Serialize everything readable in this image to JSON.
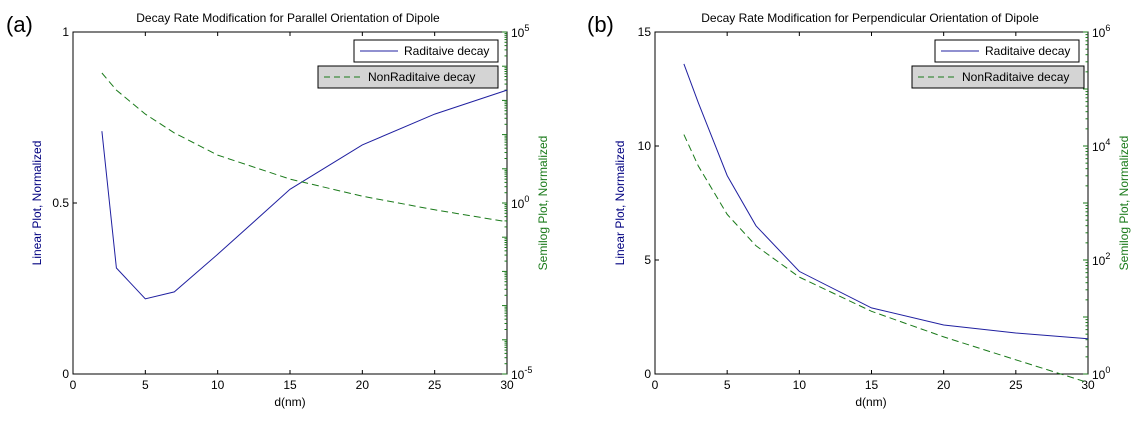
{
  "colors": {
    "radiative": "#2020a0",
    "nonradiative": "#1a7a1a",
    "axis": "#000000",
    "legend_highlight_bg": "#d4d4d4"
  },
  "chart_data": [
    {
      "panel_label": "(a)",
      "type": "line",
      "title": "Decay Rate Modification for Parallel Orientation of Dipole",
      "xlabel": "d(nm)",
      "ylabel": "Linear Plot, Normalized",
      "y2label": "Semilog Plot, Normalized",
      "xlim": [
        0,
        30
      ],
      "ylim": [
        0,
        1
      ],
      "y2_log_exp_range": [
        -5,
        5
      ],
      "xticks": [
        0,
        5,
        10,
        15,
        20,
        25,
        30
      ],
      "yticks": [
        0,
        0.5,
        1
      ],
      "ytick_labels": [
        "0",
        "0.5",
        "1"
      ],
      "y2ticks": [
        {
          "base": "10",
          "exp": "-5",
          "value_exp": -5
        },
        {
          "base": "10",
          "exp": "0",
          "value_exp": 0
        },
        {
          "base": "10",
          "exp": "5",
          "value_exp": 5
        }
      ],
      "series": [
        {
          "name": "Raditaive decay",
          "axis": "left",
          "style": "solid",
          "x": [
            2,
            3,
            5,
            7,
            10,
            15,
            20,
            25,
            30
          ],
          "y": [
            0.71,
            0.31,
            0.22,
            0.24,
            0.35,
            0.54,
            0.67,
            0.76,
            0.83
          ]
        },
        {
          "name": "NonRaditaive decay",
          "axis": "right",
          "style": "dashed",
          "x": [
            2,
            3,
            5,
            7,
            10,
            15,
            20,
            25,
            30
          ],
          "y_log10": [
            3.8,
            3.3,
            2.6,
            2.05,
            1.4,
            0.7,
            0.2,
            -0.2,
            -0.55
          ]
        }
      ],
      "legend": [
        "Raditaive decay",
        "NonRaditaive decay"
      ],
      "legend_position": "top-right"
    },
    {
      "panel_label": "(b)",
      "type": "line",
      "title": "Decay Rate Modification for Perpendicular Orientation of Dipole",
      "xlabel": "d(nm)",
      "ylabel": "Linear Plot, Normalized",
      "y2label": "Semilog Plot, Normalized",
      "xlim": [
        0,
        30
      ],
      "ylim": [
        0,
        15
      ],
      "y2_log_exp_range": [
        0,
        6
      ],
      "xticks": [
        0,
        5,
        10,
        15,
        20,
        25,
        30
      ],
      "yticks": [
        0,
        5,
        10,
        15
      ],
      "ytick_labels": [
        "0",
        "5",
        "10",
        "15"
      ],
      "y2ticks": [
        {
          "base": "10",
          "exp": "0",
          "value_exp": 0
        },
        {
          "base": "10",
          "exp": "2",
          "value_exp": 2
        },
        {
          "base": "10",
          "exp": "4",
          "value_exp": 4
        },
        {
          "base": "10",
          "exp": "6",
          "value_exp": 6
        }
      ],
      "series": [
        {
          "name": "Raditaive decay",
          "axis": "left",
          "style": "solid",
          "x": [
            2,
            3,
            5,
            7,
            10,
            15,
            20,
            25,
            30
          ],
          "y": [
            13.6,
            11.9,
            8.7,
            6.5,
            4.5,
            2.9,
            2.15,
            1.8,
            1.55
          ]
        },
        {
          "name": "NonRaditaive decay",
          "axis": "right",
          "style": "dashed",
          "x": [
            2,
            3,
            5,
            7,
            10,
            15,
            20,
            25,
            30
          ],
          "y_log10": [
            4.2,
            3.65,
            2.8,
            2.25,
            1.7,
            1.1,
            0.65,
            0.25,
            -0.15
          ]
        }
      ],
      "legend": [
        "Raditaive decay",
        "NonRaditaive decay"
      ],
      "legend_position": "top-right"
    }
  ]
}
